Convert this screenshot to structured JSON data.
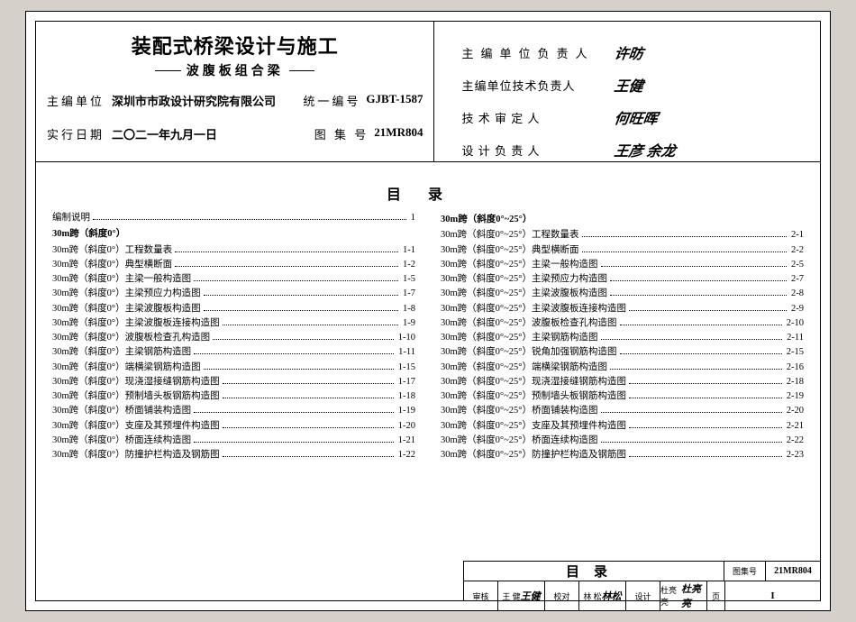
{
  "title_main": "装配式桥梁设计与施工",
  "title_sub": "波腹板组合梁",
  "info": {
    "org_label": "主编单位",
    "org_value": "深圳市市政设计研究院有限公司",
    "code_label": "统一编号",
    "code_value": "GJBT-1587",
    "date_label": "实行日期",
    "date_value": "二〇二一年九月一日",
    "atlas_label": "图 集 号",
    "atlas_value": "21MR804"
  },
  "signers": [
    {
      "role": "主编单位负责人",
      "sig": "许昉"
    },
    {
      "role": "主编单位技术负责人",
      "sig": "王健"
    },
    {
      "role": "技 术 审 定 人",
      "sig": "何旺晖"
    },
    {
      "role": "设 计 负 责 人",
      "sig": "王彦  余龙"
    }
  ],
  "toc_title": "目录",
  "toc": {
    "left": {
      "first_line": {
        "text": "编制说明",
        "page": "1"
      },
      "heading": "30m跨（斜度0°）",
      "items": [
        {
          "text": "30m跨（斜度0°）工程数量表",
          "page": "1-1"
        },
        {
          "text": "30m跨（斜度0°）典型横断面",
          "page": "1-2"
        },
        {
          "text": "30m跨（斜度0°）主梁一般构造图",
          "page": "1-5"
        },
        {
          "text": "30m跨（斜度0°）主梁预应力构造图",
          "page": "1-7"
        },
        {
          "text": "30m跨（斜度0°）主梁波腹板构造图",
          "page": "1-8"
        },
        {
          "text": "30m跨（斜度0°）主梁波腹板连接构造图",
          "page": "1-9"
        },
        {
          "text": "30m跨（斜度0°）波腹板检查孔构造图",
          "page": "1-10"
        },
        {
          "text": "30m跨（斜度0°）主梁钢筋构造图",
          "page": "1-11"
        },
        {
          "text": "30m跨（斜度0°）端横梁钢筋构造图",
          "page": "1-15"
        },
        {
          "text": "30m跨（斜度0°）现浇湿接缝钢筋构造图",
          "page": "1-17"
        },
        {
          "text": "30m跨（斜度0°）预制墙头板钢筋构造图",
          "page": "1-18"
        },
        {
          "text": "30m跨（斜度0°）桥面铺装构造图",
          "page": "1-19"
        },
        {
          "text": "30m跨（斜度0°）支座及其预埋件构造图",
          "page": "1-20"
        },
        {
          "text": "30m跨（斜度0°）桥面连续构造图",
          "page": "1-21"
        },
        {
          "text": "30m跨（斜度0°）防撞护栏构造及钢筋图",
          "page": "1-22"
        }
      ]
    },
    "right": {
      "heading": "30m跨（斜度0°~25°）",
      "items": [
        {
          "text": "30m跨（斜度0°~25°）工程数量表",
          "page": "2-1"
        },
        {
          "text": "30m跨（斜度0°~25°）典型横断面",
          "page": "2-2"
        },
        {
          "text": "30m跨（斜度0°~25°）主梁一般构造图",
          "page": "2-5"
        },
        {
          "text": "30m跨（斜度0°~25°）主梁预应力构造图",
          "page": "2-7"
        },
        {
          "text": "30m跨（斜度0°~25°）主梁波腹板构造图",
          "page": "2-8"
        },
        {
          "text": "30m跨（斜度0°~25°）主梁波腹板连接构造图",
          "page": "2-9"
        },
        {
          "text": "30m跨（斜度0°~25°）波腹板检查孔构造图",
          "page": "2-10"
        },
        {
          "text": "30m跨（斜度0°~25°）主梁钢筋构造图",
          "page": "2-11"
        },
        {
          "text": "30m跨（斜度0°~25°）锐角加强钢筋构造图",
          "page": "2-15"
        },
        {
          "text": "30m跨（斜度0°~25°）端横梁钢筋构造图",
          "page": "2-16"
        },
        {
          "text": "30m跨（斜度0°~25°）现浇湿接缝钢筋构造图",
          "page": "2-18"
        },
        {
          "text": "30m跨（斜度0°~25°）预制墙头板钢筋构造图",
          "page": "2-19"
        },
        {
          "text": "30m跨（斜度0°~25°）桥面铺装构造图",
          "page": "2-20"
        },
        {
          "text": "30m跨（斜度0°~25°）支座及其预埋件构造图",
          "page": "2-21"
        },
        {
          "text": "30m跨（斜度0°~25°）桥面连续构造图",
          "page": "2-22"
        },
        {
          "text": "30m跨（斜度0°~25°）防撞护栏构造及钢筋图",
          "page": "2-23"
        }
      ]
    }
  },
  "footer": {
    "big": "目录",
    "atlas_label": "图集号",
    "atlas_value": "21MR804",
    "review_label": "审核",
    "review_name": "王 健",
    "review_sig": "王健",
    "proof_label": "校对",
    "proof_name": "林 松",
    "proof_sig": "林松",
    "design_label": "设计",
    "design_name": "杜亮亮",
    "design_sig": "杜亮亮",
    "page_label": "页",
    "page_value": "I"
  },
  "colors": {
    "bg": "#d5d0ca",
    "paper": "#ffffff",
    "line": "#000000"
  }
}
